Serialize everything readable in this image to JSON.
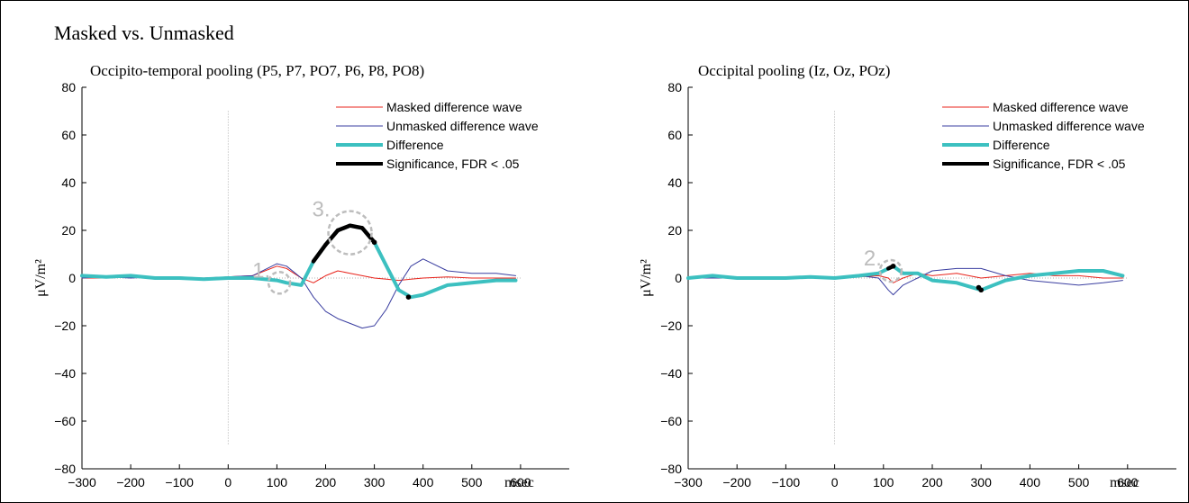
{
  "figure_title": "Masked vs. Unmasked",
  "colors": {
    "masked": "#e8241c",
    "unmasked": "#3a3ea0",
    "difference": "#3cc0c0",
    "significance": "#000000",
    "annotation": "#bdbdbd",
    "zero_line": "#999999"
  },
  "chart_data": [
    {
      "type": "line",
      "title": "Occipito-temporal pooling (P5, P7, PO7, P6, P8, PO8)",
      "xlabel": "msec",
      "ylabel": "μV/m²",
      "xlim": [
        -300,
        700
      ],
      "ylim": [
        -80,
        80
      ],
      "xticks": [
        -300,
        -200,
        -100,
        0,
        100,
        200,
        300,
        400,
        500,
        600
      ],
      "xtick_labels": [
        "−300",
        "−200",
        "−100",
        "0",
        "100",
        "200",
        "300",
        "400",
        "500",
        "600"
      ],
      "yticks": [
        -80,
        -60,
        -40,
        -20,
        0,
        20,
        40,
        60,
        80
      ],
      "ytick_labels": [
        "−80",
        "−60",
        "−40",
        "−20",
        "0",
        "20",
        "40",
        "60",
        "80"
      ],
      "grid": false,
      "legend_position": "top-right",
      "x": [
        -300,
        -250,
        -200,
        -150,
        -100,
        -50,
        0,
        50,
        100,
        120,
        150,
        175,
        200,
        225,
        250,
        275,
        300,
        325,
        350,
        375,
        400,
        450,
        500,
        550,
        590
      ],
      "series": [
        {
          "name": "Masked difference wave",
          "values": [
            0,
            0,
            0.5,
            0,
            0.5,
            0,
            0.5,
            1,
            5,
            4,
            0,
            -2,
            1,
            3,
            2,
            1,
            0,
            -0.5,
            -1,
            -0.5,
            0,
            0.5,
            0,
            0,
            0
          ]
        },
        {
          "name": "Unmasked difference wave",
          "values": [
            0,
            0.5,
            0,
            0.5,
            0,
            0,
            0.5,
            1,
            6,
            5,
            0,
            -8,
            -14,
            -17,
            -19,
            -21,
            -20,
            -13,
            -3,
            5,
            8,
            3,
            2,
            2,
            1
          ]
        },
        {
          "name": "Difference",
          "values": [
            1,
            0.5,
            1,
            0,
            0,
            -0.5,
            0,
            0,
            -1,
            -2,
            -3,
            7,
            14,
            20,
            22,
            21,
            15,
            5,
            -5,
            -8,
            -7,
            -3,
            -2,
            -1,
            -1
          ]
        }
      ],
      "significance": {
        "name": "Significance, FDR < .05",
        "x": [
          175,
          200,
          225,
          250,
          275,
          300,
          370
        ],
        "values": [
          7,
          14,
          20,
          22,
          21,
          15,
          -8
        ]
      },
      "annotations": [
        {
          "label": "1.",
          "x": 105,
          "y": -2
        },
        {
          "label": "3.",
          "x": 250,
          "y": 19
        }
      ]
    },
    {
      "type": "line",
      "title": "Occipital pooling (Iz, Oz, POz)",
      "xlabel": "msec",
      "ylabel": "μV/m²",
      "xlim": [
        -300,
        700
      ],
      "ylim": [
        -80,
        80
      ],
      "xticks": [
        -300,
        -200,
        -100,
        0,
        100,
        200,
        300,
        400,
        500,
        600
      ],
      "xtick_labels": [
        "−300",
        "−200",
        "−100",
        "0",
        "100",
        "200",
        "300",
        "400",
        "500",
        "600"
      ],
      "yticks": [
        -80,
        -60,
        -40,
        -20,
        0,
        20,
        40,
        60,
        80
      ],
      "ytick_labels": [
        "−80",
        "−60",
        "−40",
        "−20",
        "0",
        "20",
        "40",
        "60",
        "80"
      ],
      "grid": false,
      "legend_position": "top-right",
      "x": [
        -300,
        -250,
        -200,
        -150,
        -100,
        -50,
        0,
        50,
        90,
        110,
        120,
        140,
        170,
        200,
        250,
        300,
        350,
        400,
        450,
        500,
        550,
        590
      ],
      "series": [
        {
          "name": "Masked difference wave",
          "values": [
            0,
            0,
            0.5,
            0,
            0,
            0,
            0,
            0.5,
            1,
            0,
            -2,
            0,
            2,
            1,
            2,
            0,
            1,
            2,
            1,
            1,
            0,
            0
          ]
        },
        {
          "name": "Unmasked difference wave",
          "values": [
            0,
            0,
            0,
            0.5,
            0,
            0,
            0,
            1,
            0,
            -5,
            -7,
            -3,
            0,
            3,
            4,
            4,
            1,
            -1,
            -2,
            -3,
            -2,
            -1
          ]
        },
        {
          "name": "Difference",
          "values": [
            0,
            1,
            0,
            0,
            0,
            0.5,
            0,
            1,
            2,
            4,
            5,
            2,
            2,
            -1,
            -2,
            -5,
            -1,
            1,
            2,
            3,
            3,
            1
          ]
        }
      ],
      "significance": {
        "name": "Significance, FDR < .05",
        "x": [
          110,
          120,
          295,
          300
        ],
        "values": [
          4,
          5,
          -4,
          -5
        ]
      },
      "annotations": [
        {
          "label": "2.",
          "x": 115,
          "y": 3
        }
      ]
    }
  ]
}
